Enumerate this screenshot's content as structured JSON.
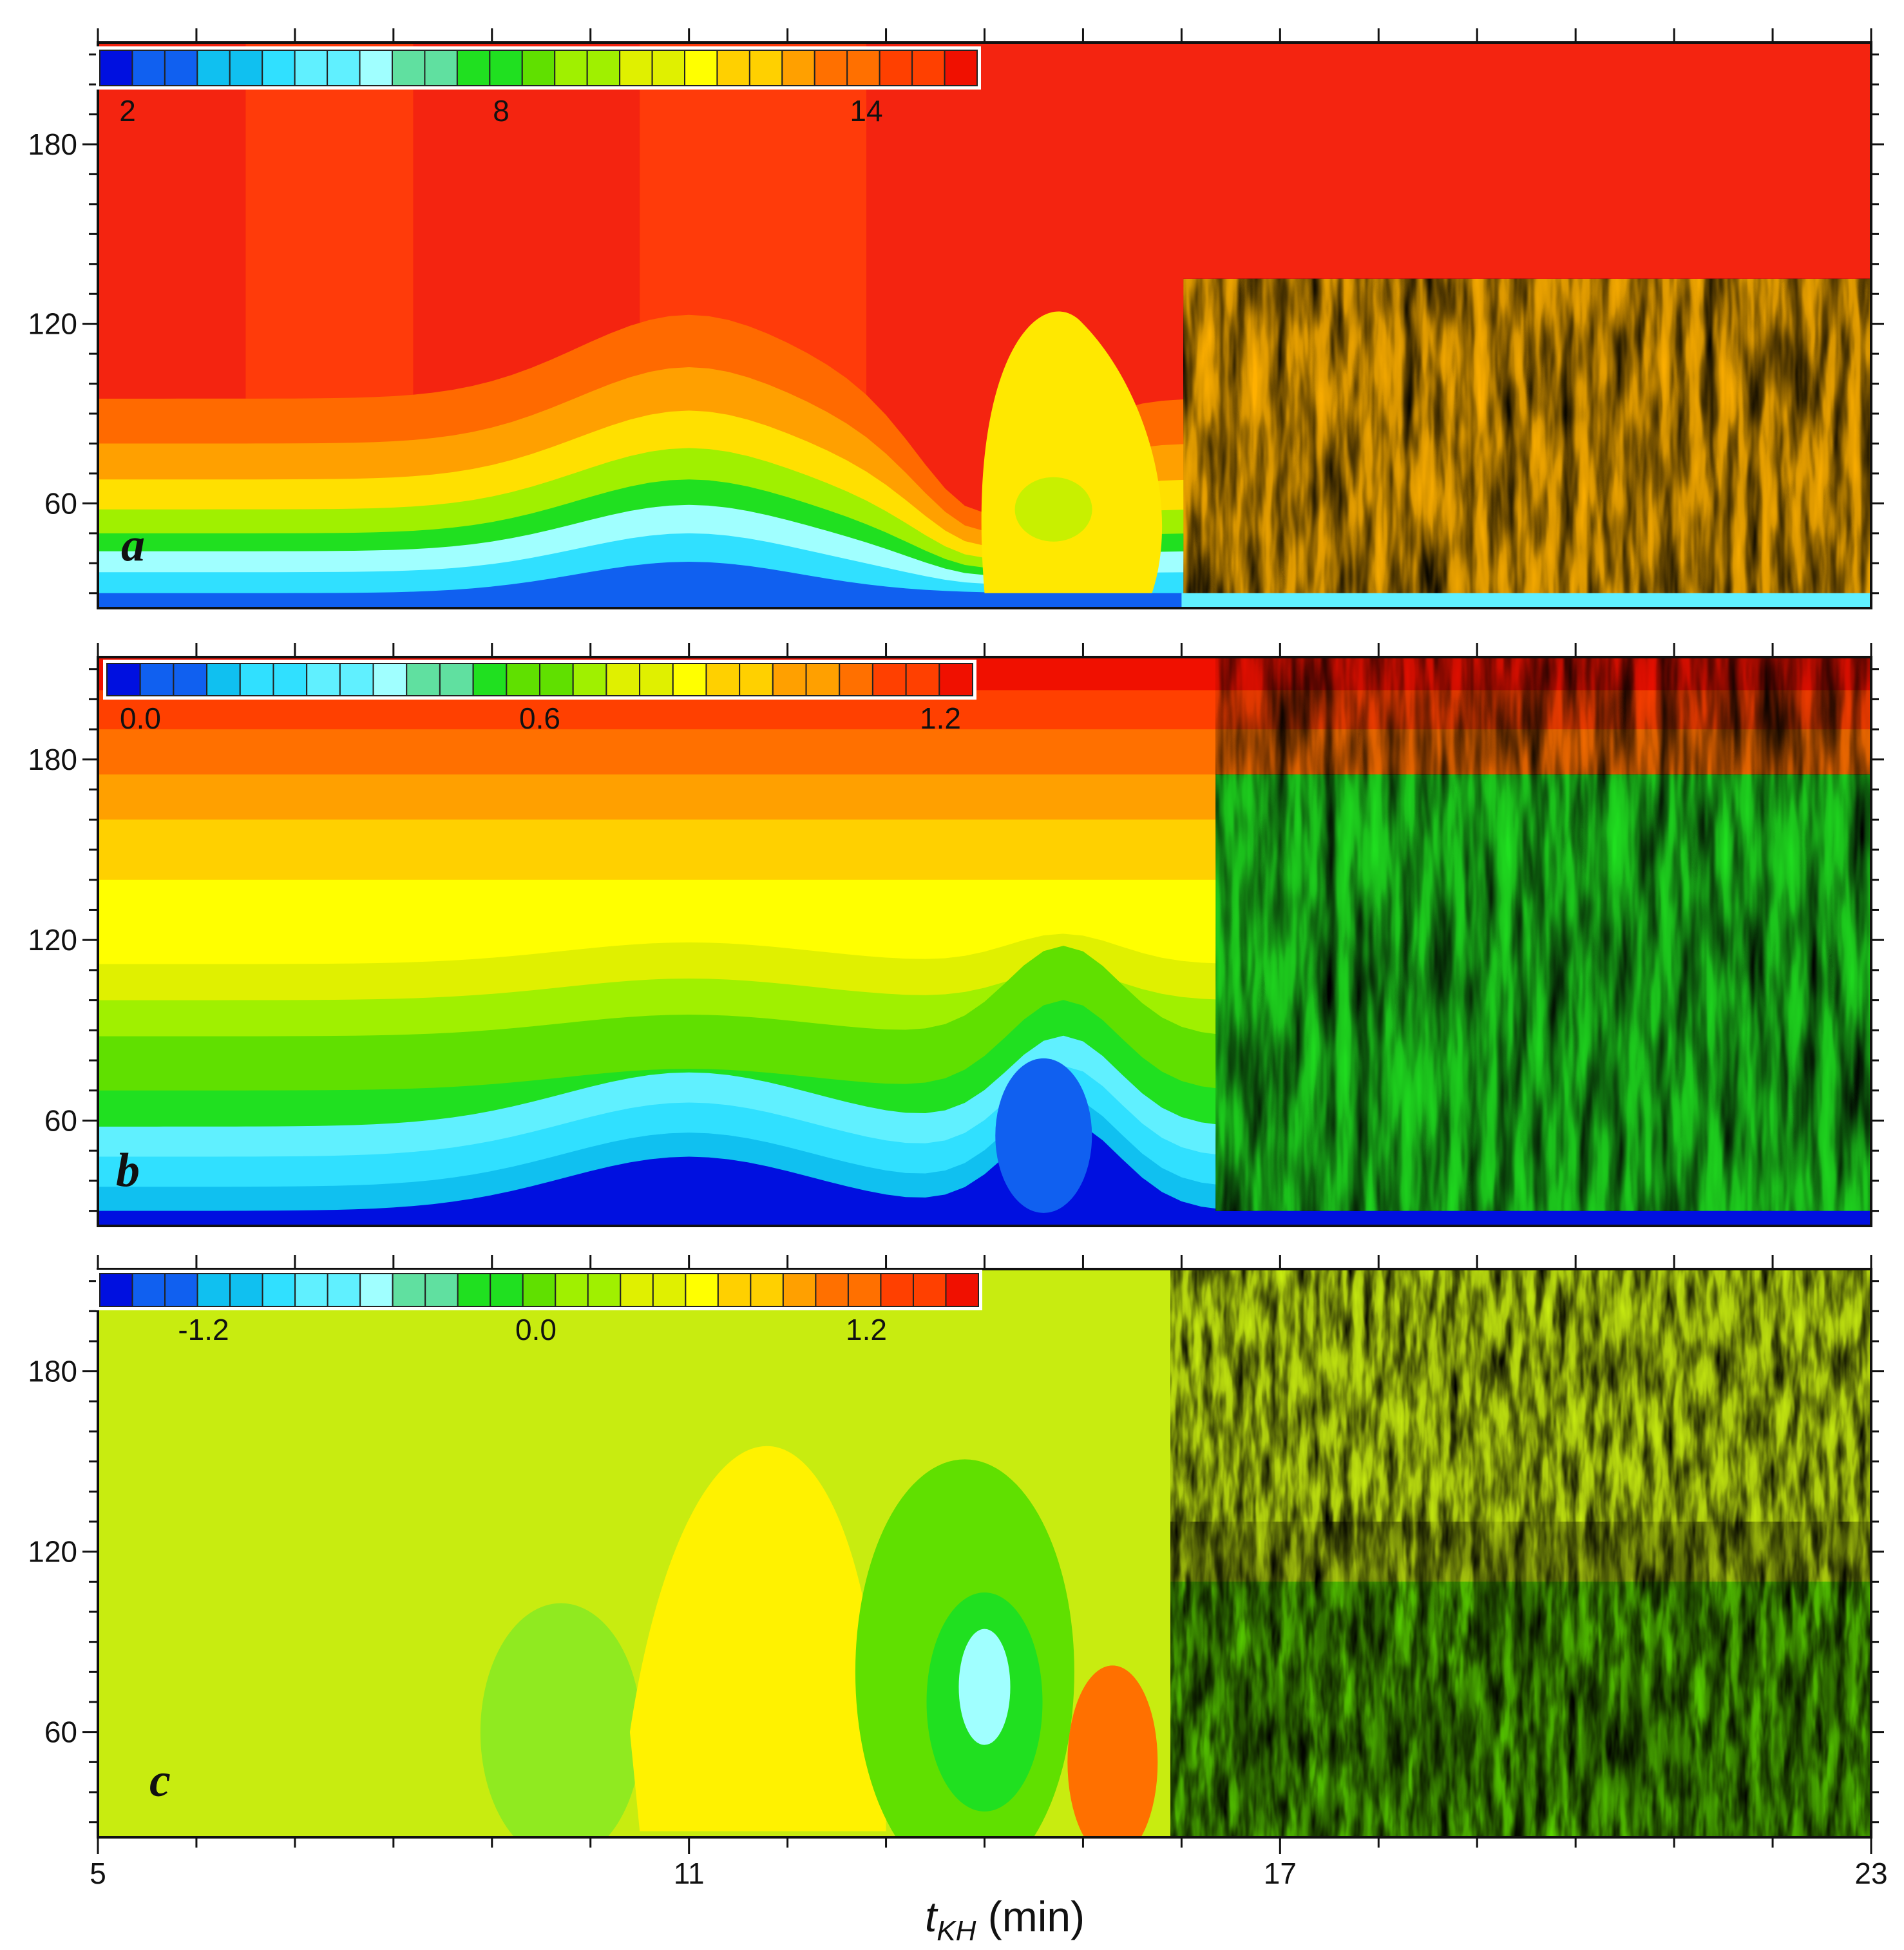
{
  "figure": {
    "xaxis": {
      "label_symbol": "t",
      "label_subscript": "KH",
      "label_unit": " (min)",
      "range": [
        5,
        23
      ],
      "tick_values": [
        5,
        11,
        17,
        23
      ],
      "minor_step": 1
    },
    "yaxis": {
      "range": [
        25,
        214
      ],
      "tick_values": [
        60,
        120,
        180
      ],
      "minor_step": 10
    }
  },
  "chart_data": [
    {
      "type": "heatmap",
      "panel_label": "a",
      "x": [
        5,
        23
      ],
      "y": [
        25,
        214
      ],
      "colorbar": {
        "ticks": [
          "2",
          "8",
          "14"
        ],
        "min": 1.0,
        "max": 15.5,
        "tick_values": [
          2,
          8,
          14
        ],
        "bands": 27
      },
      "colormap": [
        "#0010e0",
        "#1060f0",
        "#10c0f0",
        "#30e0ff",
        "#60f0ff",
        "#a0ffff",
        "#60e0a0",
        "#20e020",
        "#60e000",
        "#a0f000",
        "#e0f000",
        "#ffff00",
        "#ffd000",
        "#ffa000",
        "#ff7000",
        "#ff4000",
        "#f01000"
      ]
    },
    {
      "type": "heatmap",
      "panel_label": "b",
      "x": [
        5,
        23
      ],
      "y": [
        25,
        214
      ],
      "colorbar": {
        "ticks": [
          "0.0",
          "0.6",
          "1.2"
        ],
        "min": 0.0,
        "max": 1.3,
        "tick_values": [
          0.0,
          0.6,
          1.2
        ],
        "bands": 26
      },
      "colormap": [
        "#0010e0",
        "#1060f0",
        "#10c0f0",
        "#30e0ff",
        "#60f0ff",
        "#a0ffff",
        "#60e0a0",
        "#20e020",
        "#60e000",
        "#a0f000",
        "#e0f000",
        "#ffff00",
        "#ffd000",
        "#ffa000",
        "#ff7000",
        "#ff4000",
        "#f01000"
      ]
    },
    {
      "type": "heatmap",
      "panel_label": "c",
      "x": [
        5,
        23
      ],
      "y": [
        25,
        214
      ],
      "colorbar": {
        "ticks": [
          "-1.2",
          "0.0",
          "1.2"
        ],
        "min": -1.6,
        "max": 1.6,
        "tick_values": [
          -1.2,
          0.0,
          1.2
        ],
        "bands": 27
      },
      "colormap": [
        "#0010e0",
        "#1060f0",
        "#10c0f0",
        "#30e0ff",
        "#60f0ff",
        "#a0ffff",
        "#60e0a0",
        "#20e020",
        "#60e000",
        "#a0f000",
        "#e0f000",
        "#ffff00",
        "#ffd000",
        "#ffa000",
        "#ff7000",
        "#ff4000",
        "#f01000"
      ]
    }
  ]
}
